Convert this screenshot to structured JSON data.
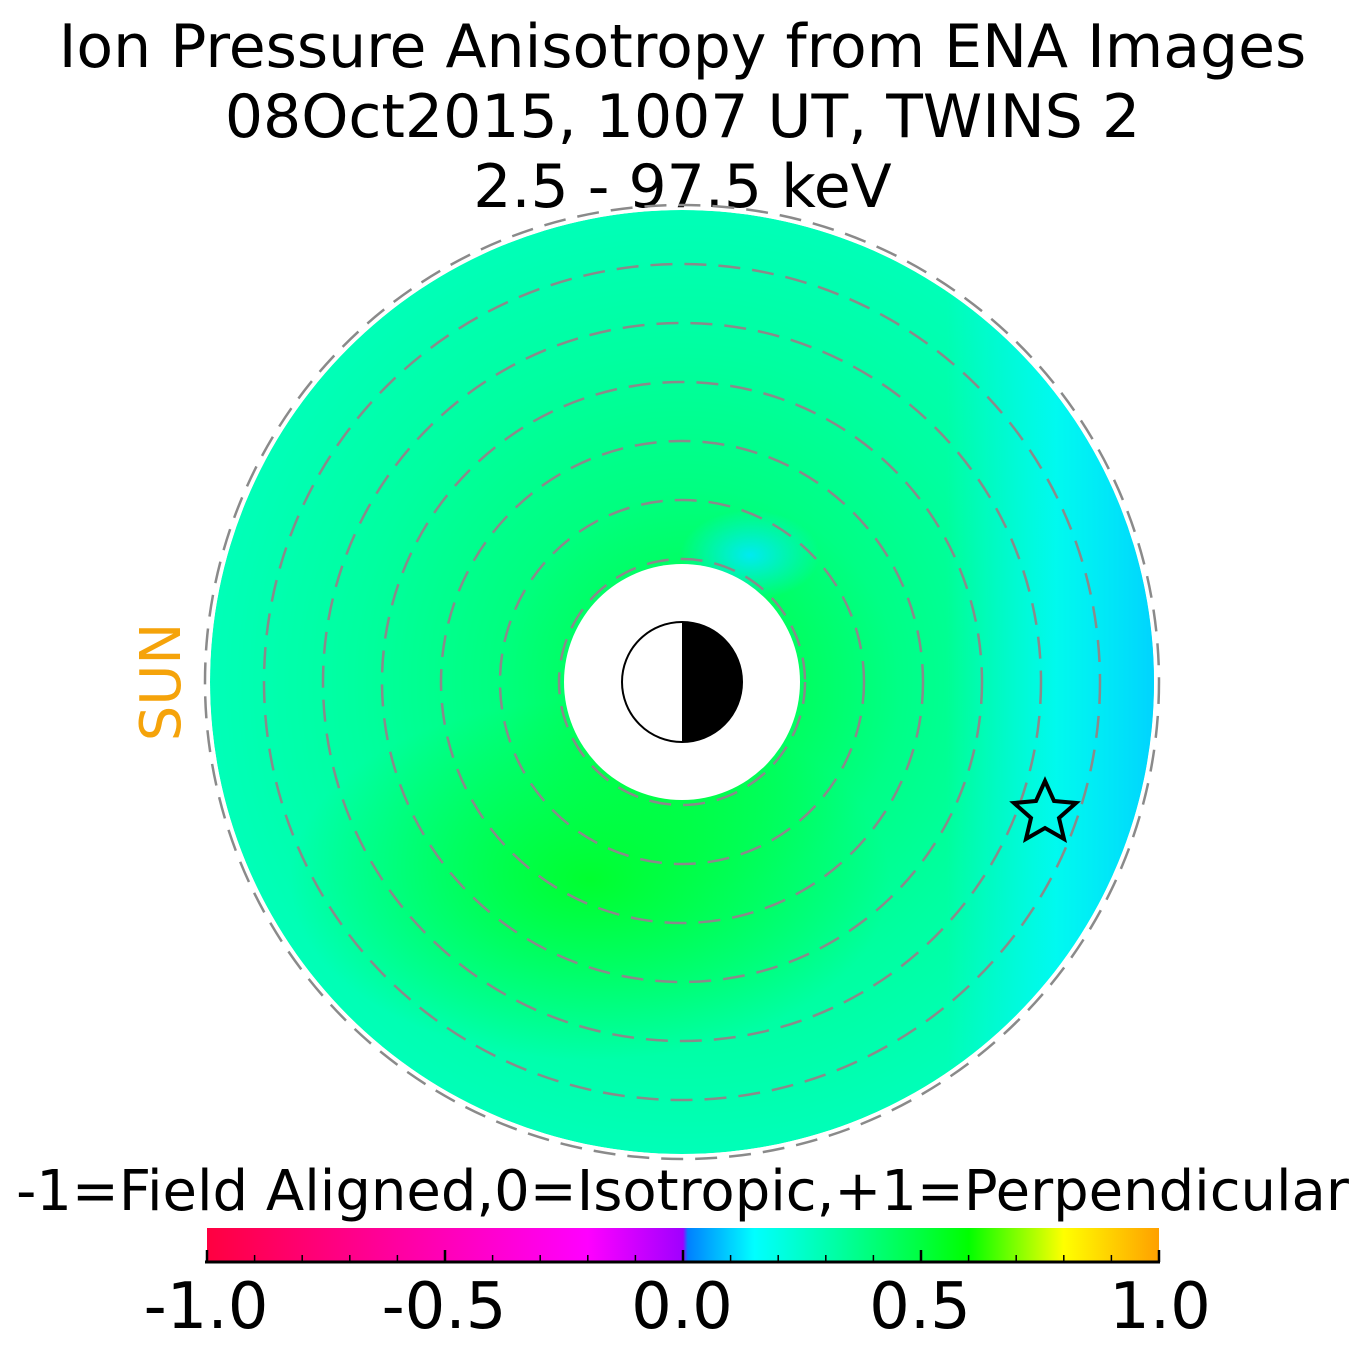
{
  "title": {
    "line1": "Ion Pressure Anisotropy from  ENA Images",
    "line2": "08Oct2015, 1007 UT,  TWINS 2",
    "line3": "2.5 - 97.5 keV"
  },
  "sun_label": "SUN",
  "colorbar": {
    "title": "-1=Field Aligned,0=Isotropic,+1=Perpendicular",
    "range": [
      -1.0,
      1.0
    ],
    "tick_labels": [
      "-1.0",
      "-0.5",
      "0.0",
      "0.5",
      "1.0"
    ],
    "tick_values": [
      -1.0,
      -0.5,
      0.0,
      0.5,
      1.0
    ],
    "stops": [
      {
        "value": -1.0,
        "color": "#ff0040"
      },
      {
        "value": -0.6,
        "color": "#ff00a0"
      },
      {
        "value": -0.2,
        "color": "#ff00ff"
      },
      {
        "value": 0.0,
        "color": "#a000ff"
      },
      {
        "value": 0.01,
        "color": "#0080ff"
      },
      {
        "value": 0.15,
        "color": "#00ffff"
      },
      {
        "value": 0.3,
        "color": "#00ffb0"
      },
      {
        "value": 0.5,
        "color": "#00ff40"
      },
      {
        "value": 0.6,
        "color": "#00ff00"
      },
      {
        "value": 0.8,
        "color": "#ffff00"
      },
      {
        "value": 1.0,
        "color": "#ffa000"
      }
    ]
  },
  "chart_data": {
    "type": "heatmap",
    "description_kind": "polar equatorial-plane anisotropy map",
    "colors": {
      "dominant_low_values": "#00ffa0",
      "dusk_side_high_values": "#00d8ff",
      "dayside_noon_sector": "#00ff80",
      "post_midnight_peak": "#00ff20"
    },
    "value_summary": {
      "typical": 0.35,
      "dayside_left": 0.35,
      "post_midnight_peak": 0.55,
      "dusk_edge_min": 0.1,
      "near_earth_dusk_patch": 0.15
    },
    "dashed_rings": 8,
    "marker": "star",
    "earth_symbol": "half-dark-circle"
  }
}
